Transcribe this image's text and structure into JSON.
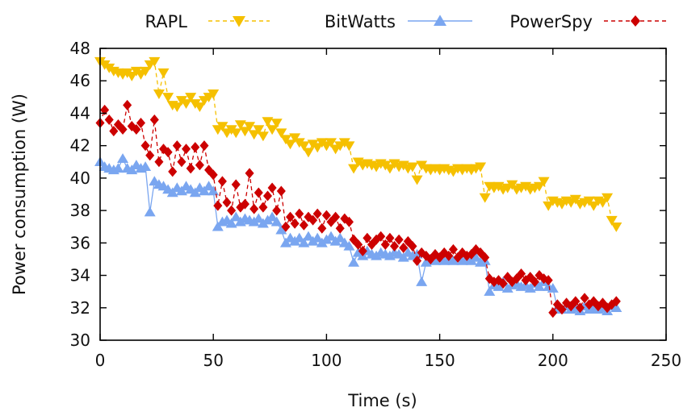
{
  "chart_data": {
    "type": "scatter",
    "title": "",
    "xlabel": "Time (s)",
    "ylabel": "Power consumption (W)",
    "xlim": [
      0,
      250
    ],
    "ylim": [
      30,
      48
    ],
    "xticks": [
      0,
      50,
      100,
      150,
      200,
      250
    ],
    "yticks": [
      30,
      32,
      34,
      36,
      38,
      40,
      42,
      44,
      46,
      48
    ],
    "grid": false,
    "legend_position": "top",
    "series": [
      {
        "name": "RAPL",
        "color": "#f5c000",
        "marker": "triangle-down",
        "line": "dashed",
        "x": [
          0,
          2,
          4,
          6,
          8,
          10,
          12,
          14,
          16,
          18,
          20,
          22,
          24,
          26,
          28,
          30,
          32,
          34,
          36,
          38,
          40,
          42,
          44,
          46,
          48,
          50,
          52,
          54,
          56,
          58,
          60,
          62,
          64,
          66,
          68,
          70,
          72,
          74,
          76,
          78,
          80,
          82,
          84,
          86,
          88,
          90,
          92,
          94,
          96,
          98,
          100,
          102,
          104,
          106,
          108,
          110,
          112,
          114,
          116,
          118,
          120,
          122,
          124,
          126,
          128,
          130,
          132,
          134,
          136,
          138,
          140,
          142,
          144,
          146,
          148,
          150,
          152,
          154,
          156,
          158,
          160,
          162,
          164,
          166,
          168,
          170,
          172,
          174,
          176,
          178,
          180,
          182,
          184,
          186,
          188,
          190,
          192,
          194,
          196,
          198,
          200,
          202,
          204,
          206,
          208,
          210,
          212,
          214,
          216,
          218,
          220,
          222,
          224,
          226,
          228
        ],
        "y": [
          47.2,
          47.0,
          46.8,
          46.6,
          46.5,
          46.4,
          46.5,
          46.3,
          46.6,
          46.4,
          46.6,
          47.0,
          47.2,
          45.2,
          46.5,
          45.0,
          44.5,
          44.4,
          44.8,
          44.6,
          45.0,
          44.6,
          44.4,
          44.8,
          45.0,
          45.2,
          43.0,
          43.2,
          42.8,
          43.0,
          42.8,
          43.3,
          42.9,
          43.2,
          42.7,
          43.0,
          42.6,
          43.5,
          43.0,
          43.4,
          42.8,
          42.4,
          42.1,
          42.5,
          42.2,
          42.0,
          41.6,
          42.1,
          41.9,
          42.2,
          42.0,
          42.2,
          41.8,
          42.0,
          42.2,
          42.0,
          40.6,
          41.0,
          40.8,
          40.9,
          40.8,
          40.7,
          40.9,
          40.8,
          40.6,
          40.9,
          40.7,
          40.8,
          40.6,
          40.7,
          39.9,
          40.8,
          40.6,
          40.5,
          40.6,
          40.5,
          40.6,
          40.5,
          40.4,
          40.6,
          40.5,
          40.6,
          40.5,
          40.6,
          40.7,
          38.8,
          39.5,
          39.4,
          39.5,
          39.3,
          39.4,
          39.6,
          39.3,
          39.4,
          39.5,
          39.3,
          39.4,
          39.5,
          39.8,
          38.3,
          38.6,
          38.5,
          38.4,
          38.6,
          38.5,
          38.7,
          38.4,
          38.5,
          38.6,
          38.3,
          38.6,
          38.5,
          38.8,
          37.4,
          37.0
        ]
      },
      {
        "name": "BitWatts",
        "color": "#7aa6f0",
        "marker": "triangle-up",
        "line": "solid",
        "x": [
          0,
          2,
          4,
          6,
          8,
          10,
          12,
          14,
          16,
          18,
          20,
          22,
          24,
          26,
          28,
          30,
          32,
          34,
          36,
          38,
          40,
          42,
          44,
          46,
          48,
          50,
          52,
          54,
          56,
          58,
          60,
          62,
          64,
          66,
          68,
          70,
          72,
          74,
          76,
          78,
          80,
          82,
          84,
          86,
          88,
          90,
          92,
          94,
          96,
          98,
          100,
          102,
          104,
          106,
          108,
          110,
          112,
          114,
          116,
          118,
          120,
          122,
          124,
          126,
          128,
          130,
          132,
          134,
          136,
          138,
          140,
          142,
          144,
          146,
          148,
          150,
          152,
          154,
          156,
          158,
          160,
          162,
          164,
          166,
          168,
          170,
          172,
          174,
          176,
          178,
          180,
          182,
          184,
          186,
          188,
          190,
          192,
          194,
          196,
          198,
          200,
          202,
          204,
          206,
          208,
          210,
          212,
          214,
          216,
          218,
          220,
          222,
          224,
          226,
          228
        ],
        "y": [
          41.0,
          40.7,
          40.6,
          40.5,
          40.6,
          41.2,
          40.6,
          40.5,
          40.8,
          40.6,
          40.7,
          37.9,
          39.8,
          39.6,
          39.5,
          39.3,
          39.1,
          39.4,
          39.2,
          39.5,
          39.3,
          39.1,
          39.4,
          39.2,
          39.5,
          39.2,
          37.0,
          37.3,
          37.4,
          37.2,
          37.6,
          37.3,
          37.5,
          37.4,
          37.3,
          37.5,
          37.2,
          37.4,
          37.6,
          37.3,
          36.8,
          36.0,
          36.3,
          36.1,
          36.3,
          36.0,
          36.4,
          36.1,
          36.3,
          36.0,
          36.2,
          36.4,
          36.1,
          36.3,
          36.0,
          35.8,
          34.8,
          35.4,
          35.2,
          35.5,
          35.3,
          35.2,
          35.4,
          35.3,
          35.2,
          35.4,
          35.3,
          35.1,
          35.4,
          35.2,
          35.3,
          33.6,
          34.8,
          35.0,
          34.9,
          35.1,
          34.9,
          35.0,
          34.9,
          35.1,
          34.9,
          35.0,
          34.9,
          35.1,
          34.8,
          34.9,
          33.0,
          33.4,
          33.3,
          33.6,
          33.2,
          33.4,
          33.5,
          33.3,
          33.4,
          33.2,
          33.5,
          33.3,
          33.6,
          33.3,
          33.2,
          32.0,
          31.9,
          32.1,
          31.9,
          32.0,
          31.8,
          32.1,
          31.9,
          32.0,
          31.9,
          32.0,
          31.8,
          32.1,
          32.0
        ]
      },
      {
        "name": "PowerSpy",
        "color": "#cc0000",
        "marker": "diamond",
        "line": "dashed",
        "x": [
          0,
          2,
          4,
          6,
          8,
          10,
          12,
          14,
          16,
          18,
          20,
          22,
          24,
          26,
          28,
          30,
          32,
          34,
          36,
          38,
          40,
          42,
          44,
          46,
          48,
          50,
          52,
          54,
          56,
          58,
          60,
          62,
          64,
          66,
          68,
          70,
          72,
          74,
          76,
          78,
          80,
          82,
          84,
          86,
          88,
          90,
          92,
          94,
          96,
          98,
          100,
          102,
          104,
          106,
          108,
          110,
          112,
          114,
          116,
          118,
          120,
          122,
          124,
          126,
          128,
          130,
          132,
          134,
          136,
          138,
          140,
          142,
          144,
          146,
          148,
          150,
          152,
          154,
          156,
          158,
          160,
          162,
          164,
          166,
          168,
          170,
          172,
          174,
          176,
          178,
          180,
          182,
          184,
          186,
          188,
          190,
          192,
          194,
          196,
          198,
          200,
          202,
          204,
          206,
          208,
          210,
          212,
          214,
          216,
          218,
          220,
          222,
          224,
          226,
          228
        ],
        "y": [
          43.4,
          44.2,
          43.6,
          42.9,
          43.3,
          43.0,
          44.5,
          43.2,
          43.0,
          43.4,
          42.0,
          41.4,
          43.6,
          41.0,
          41.8,
          41.6,
          40.4,
          42.0,
          41.0,
          41.8,
          40.6,
          41.9,
          40.8,
          42.0,
          40.5,
          40.2,
          38.3,
          39.8,
          38.5,
          38.0,
          39.6,
          38.2,
          38.4,
          40.3,
          38.1,
          39.1,
          38.2,
          38.9,
          39.4,
          38.0,
          39.2,
          37.0,
          37.6,
          37.2,
          37.8,
          37.1,
          37.6,
          37.4,
          37.8,
          36.9,
          37.7,
          37.3,
          37.6,
          36.9,
          37.5,
          37.3,
          36.2,
          35.9,
          35.5,
          36.3,
          35.9,
          36.2,
          36.4,
          35.9,
          36.3,
          35.8,
          36.2,
          35.7,
          36.1,
          35.8,
          34.9,
          35.4,
          35.2,
          35.0,
          35.3,
          35.1,
          35.4,
          35.2,
          35.6,
          35.1,
          35.4,
          35.2,
          35.3,
          35.6,
          35.4,
          35.1,
          33.8,
          33.6,
          33.7,
          33.5,
          33.9,
          33.6,
          33.8,
          34.1,
          33.7,
          33.9,
          33.6,
          34.0,
          33.8,
          33.7,
          31.7,
          32.2,
          31.9,
          32.3,
          32.1,
          32.4,
          32.0,
          32.6,
          32.2,
          32.4,
          32.1,
          32.3,
          32.0,
          32.2,
          32.4
        ]
      }
    ]
  }
}
